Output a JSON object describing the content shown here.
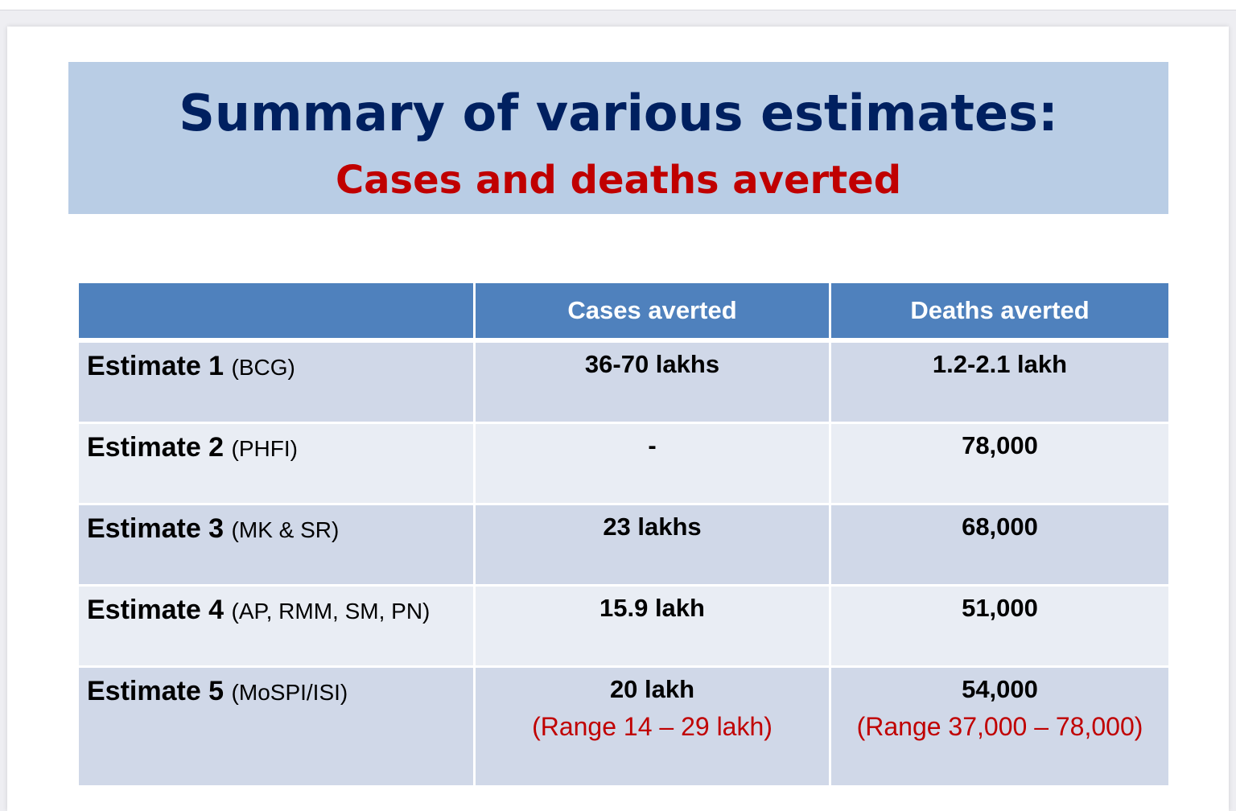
{
  "slide": {
    "title": "Summary of various estimates:",
    "subtitle": "Cases and deaths averted"
  },
  "table": {
    "headers": [
      "",
      "Cases averted",
      "Deaths averted"
    ],
    "rows": [
      {
        "label": "Estimate 1",
        "source": "(BCG)",
        "cases": "36-70 lakhs",
        "cases_range": "",
        "deaths": "1.2-2.1 lakh",
        "deaths_range": ""
      },
      {
        "label": "Estimate 2",
        "source": "(PHFI)",
        "cases": "-",
        "cases_range": "",
        "deaths": "78,000",
        "deaths_range": ""
      },
      {
        "label": "Estimate 3",
        "source": "(MK & SR)",
        "cases": "23 lakhs",
        "cases_range": "",
        "deaths": "68,000",
        "deaths_range": ""
      },
      {
        "label": "Estimate 4",
        "source": "(AP, RMM, SM, PN)",
        "cases": "15.9 lakh",
        "cases_range": "",
        "deaths": "51,000",
        "deaths_range": ""
      },
      {
        "label": "Estimate 5",
        "source": "(MoSPI/ISI)",
        "cases": "20 lakh",
        "cases_range": "(Range 14 – 29 lakh)",
        "deaths": "54,000",
        "deaths_range": "(Range 37,000 – 78,000)"
      }
    ]
  },
  "colors": {
    "title": "#002060",
    "accent_red": "#c00000",
    "header_fill": "#4f81bd",
    "title_box": "#b9cde5",
    "row_dark": "#d0d8e8",
    "row_light": "#e9edf4"
  }
}
